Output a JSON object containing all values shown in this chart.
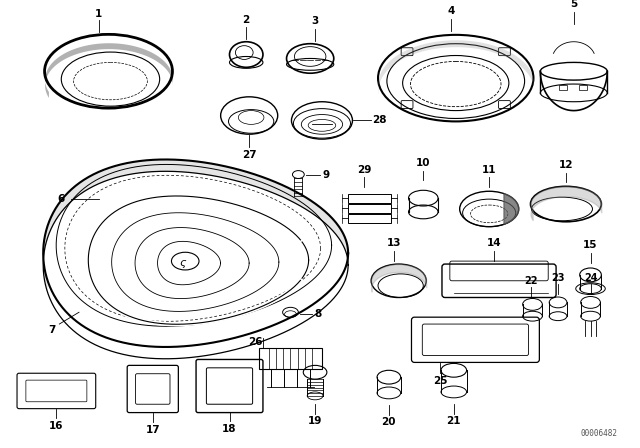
{
  "background_color": "#ffffff",
  "line_color": "#000000",
  "fig_width": 6.4,
  "fig_height": 4.48,
  "dpi": 100,
  "part_number_code": "00006482"
}
